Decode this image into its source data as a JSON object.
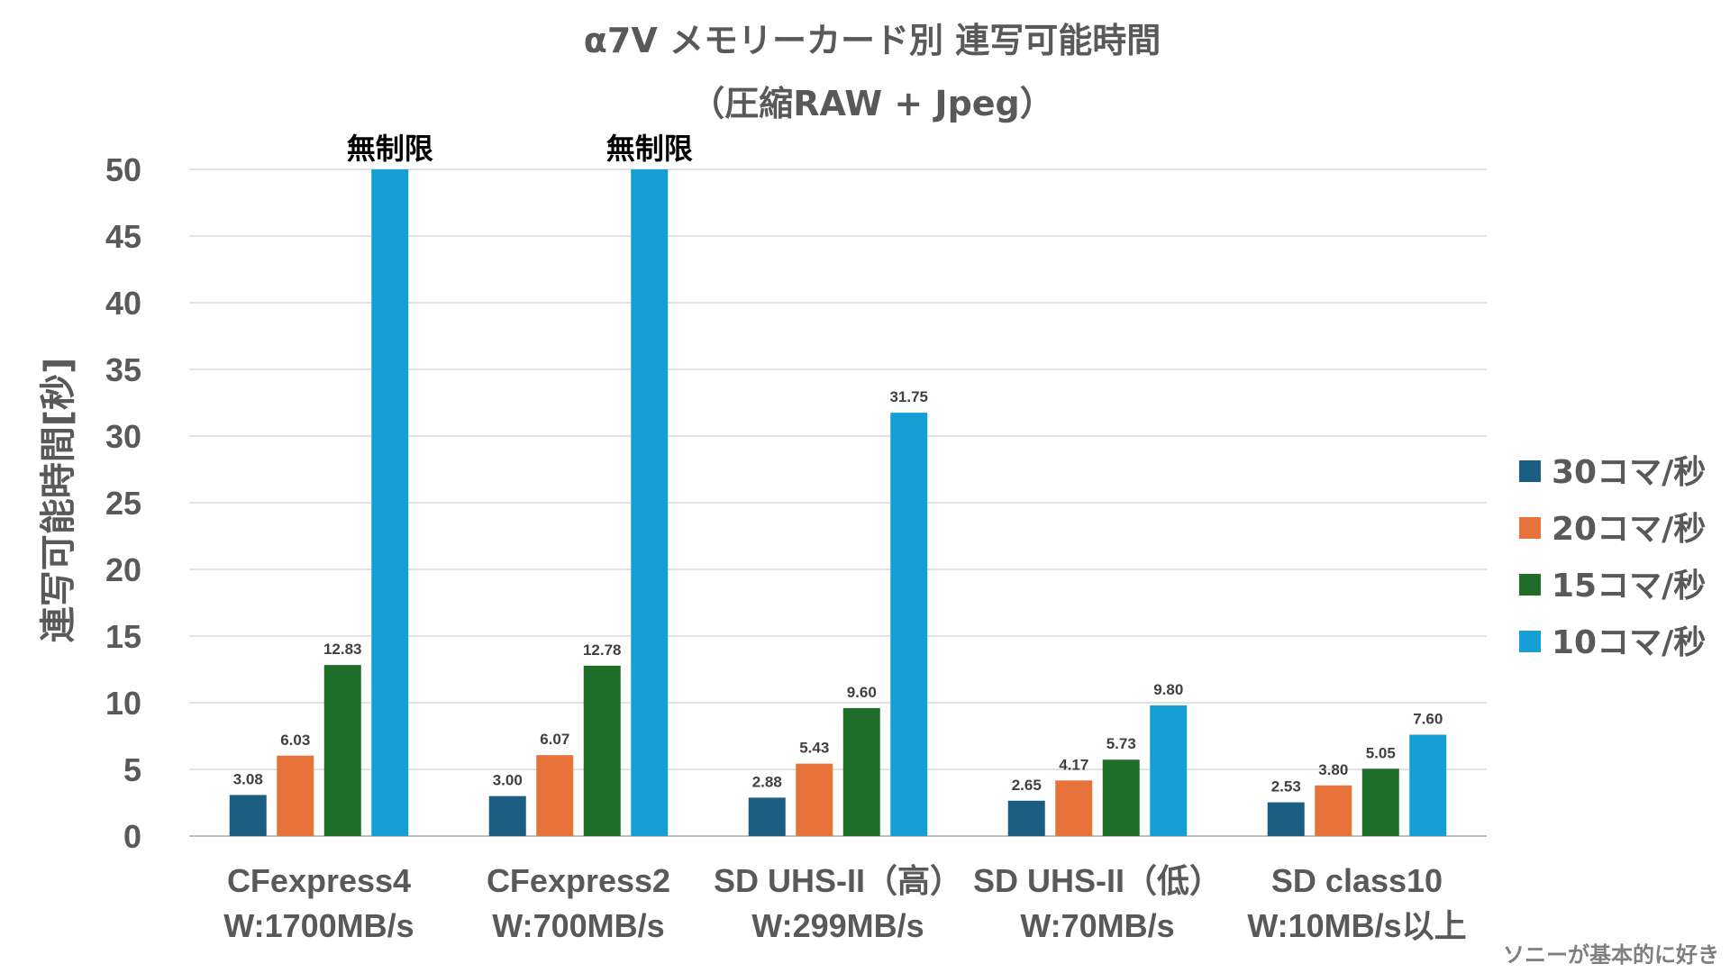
{
  "chart_data": {
    "type": "bar",
    "title_lines": [
      "α7V メモリーカード別 連写可能時間",
      "（圧縮RAW + Jpeg）"
    ],
    "ylabel": "連写可能時間[秒]",
    "ylim": [
      0,
      50
    ],
    "yticks": [
      0,
      5,
      10,
      15,
      20,
      25,
      30,
      35,
      40,
      45,
      50
    ],
    "grid": true,
    "legend_position": "right",
    "categories": [
      [
        "CFexpress4",
        "W:1700MB/s"
      ],
      [
        "CFexpress2",
        "W:700MB/s"
      ],
      [
        "SD UHS-II（高）",
        "W:299MB/s"
      ],
      [
        "SD UHS-II（低）",
        "W:70MB/s"
      ],
      [
        "SD class10",
        "W:10MB/s以上"
      ]
    ],
    "series": [
      {
        "name": "30コマ/秒",
        "color": "#1b5e82",
        "values": [
          3.08,
          3.0,
          2.88,
          2.65,
          2.53
        ],
        "labels": [
          "3.08",
          "3.00",
          "2.88",
          "2.65",
          "2.53"
        ]
      },
      {
        "name": "20コマ/秒",
        "color": "#e8733a",
        "values": [
          6.03,
          6.07,
          5.43,
          4.17,
          3.8
        ],
        "labels": [
          "6.03",
          "6.07",
          "5.43",
          "4.17",
          "3.80"
        ]
      },
      {
        "name": "15コマ/秒",
        "color": "#1e6e2a",
        "values": [
          12.83,
          12.78,
          9.6,
          5.73,
          5.05
        ],
        "labels": [
          "12.83",
          "12.78",
          "9.60",
          "5.73",
          "5.05"
        ]
      },
      {
        "name": "10コマ/秒",
        "color": "#169fd6",
        "values": [
          50,
          50,
          31.75,
          9.8,
          7.6
        ],
        "labels": [
          "無制限",
          "無制限",
          "31.75",
          "9.80",
          "7.60"
        ]
      }
    ],
    "unlimited_label": "無制限",
    "watermark": "ソニーが基本的に好き"
  }
}
